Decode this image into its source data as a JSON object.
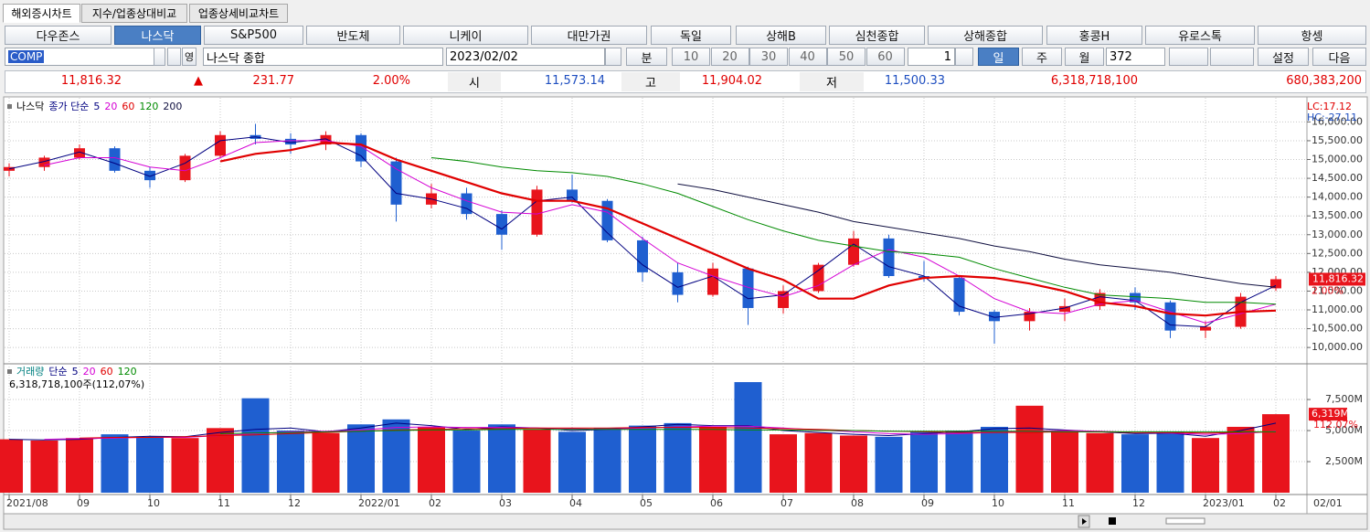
{
  "tabs": [
    "해외증시차트",
    "지수/업종상대비교",
    "업종상세비교차트"
  ],
  "selected_tab": 0,
  "markets": [
    "다우존스",
    "나스닥",
    "S&P500",
    "반도체",
    "니케이",
    "대만가권",
    "독일",
    "상해B",
    "심천종합",
    "상해종합",
    "홍콩H",
    "유로스톡",
    "항셍"
  ],
  "selected_market": 1,
  "toolbar": {
    "symbol": "COMP",
    "lang": "영",
    "name": "나스닥 종합",
    "date": "2023/02/02",
    "unit": "분",
    "minutes": [
      "10",
      "20",
      "30",
      "40",
      "50",
      "60"
    ],
    "interval": "1",
    "periods": [
      "일",
      "주",
      "월"
    ],
    "selected_period": 0,
    "count": "372",
    "settings": "설정",
    "next": "다음"
  },
  "quote": {
    "last": "11,816.32",
    "arrow": "▲",
    "change": "231.77",
    "change_pct": "2.00%",
    "open_label": "시",
    "open": "11,573.14",
    "high_label": "고",
    "high": "11,904.02",
    "low_label": "저",
    "low": "11,500.33",
    "volume": "6,318,718,100",
    "amount": "680,383,200"
  },
  "chart_data": [
    {
      "type": "candlestick",
      "title": "나스닥",
      "legend_title": "종가 단순",
      "up_color": "#e8141c",
      "down_color": "#1f5fd0",
      "open": [
        14700,
        14800,
        15050,
        15300,
        14700,
        14450,
        15100,
        15650,
        15550,
        15400,
        15650,
        14950,
        13800,
        14100,
        13550,
        13000,
        14200,
        13900,
        12850,
        12000,
        11400,
        12100,
        11050,
        11500,
        12200,
        12900,
        11900,
        11850,
        10950,
        10700,
        10950,
        11100,
        11450,
        11200,
        10450,
        10550,
        11573.14
      ],
      "high": [
        14900,
        15100,
        15400,
        15350,
        14800,
        15150,
        15750,
        15950,
        15700,
        15750,
        15700,
        15050,
        14350,
        14250,
        13650,
        14300,
        14600,
        13950,
        12950,
        12250,
        12250,
        12150,
        11650,
        12250,
        13100,
        13000,
        12300,
        11900,
        11000,
        11050,
        11300,
        11550,
        11600,
        11250,
        10700,
        11450,
        11904.02
      ],
      "low": [
        14550,
        14700,
        15000,
        14650,
        14250,
        14400,
        15050,
        15400,
        15150,
        15250,
        14800,
        13350,
        13700,
        13400,
        12600,
        12950,
        13850,
        12800,
        11750,
        11200,
        11350,
        10600,
        10900,
        11450,
        12150,
        11850,
        11750,
        10850,
        10100,
        10450,
        10700,
        11000,
        11000,
        10250,
        10250,
        10500,
        11500.33
      ],
      "close": [
        14800,
        15050,
        15300,
        14700,
        14450,
        15100,
        15650,
        15550,
        15400,
        15650,
        14950,
        13800,
        14100,
        13550,
        13000,
        14200,
        13900,
        12850,
        12000,
        11400,
        12100,
        11050,
        11500,
        12200,
        12900,
        11900,
        11850,
        10950,
        10700,
        10950,
        11100,
        11450,
        11200,
        10450,
        10550,
        11350,
        11816.32
      ],
      "series": [
        {
          "name": "5",
          "color": "#000080",
          "values": [
            14750,
            14950,
            15200,
            14900,
            14550,
            14900,
            15500,
            15600,
            15450,
            15550,
            15100,
            14100,
            13950,
            13700,
            13150,
            13900,
            14000,
            13050,
            12200,
            11600,
            11900,
            11300,
            11400,
            12050,
            12750,
            12150,
            11900,
            11100,
            10800,
            10900,
            11050,
            11350,
            11250,
            10600,
            10550,
            11200,
            11650
          ]
        },
        {
          "name": "20",
          "color": "#d400d4",
          "values": [
            null,
            14850,
            15050,
            15050,
            14800,
            14700,
            15050,
            15450,
            15500,
            15500,
            15350,
            14750,
            14250,
            13900,
            13600,
            13550,
            13800,
            13600,
            12900,
            12250,
            11900,
            11600,
            11350,
            11650,
            12200,
            12600,
            12400,
            11900,
            11300,
            10950,
            10900,
            11150,
            11250,
            10950,
            10650,
            10900,
            11150
          ]
        },
        {
          "name": "60",
          "color": "#e00000",
          "values": [
            null,
            null,
            null,
            null,
            null,
            null,
            14950,
            15150,
            15250,
            15450,
            15400,
            15000,
            14700,
            14400,
            14100,
            13900,
            13900,
            13700,
            13300,
            12900,
            12500,
            12100,
            11800,
            11300,
            11300,
            11650,
            11850,
            11900,
            11850,
            11700,
            11500,
            11200,
            11100,
            10900,
            10850,
            10950,
            10980
          ]
        },
        {
          "name": "120",
          "color": "#008a00",
          "values": [
            null,
            null,
            null,
            null,
            null,
            null,
            null,
            null,
            null,
            null,
            null,
            null,
            15050,
            14950,
            14800,
            14700,
            14650,
            14550,
            14350,
            14100,
            13750,
            13400,
            13100,
            12850,
            12700,
            12550,
            12500,
            12400,
            12100,
            11850,
            11600,
            11400,
            11350,
            11300,
            11200,
            11200,
            11150
          ]
        },
        {
          "name": "200",
          "color": "#101040",
          "values": [
            null,
            null,
            null,
            null,
            null,
            null,
            null,
            null,
            null,
            null,
            null,
            null,
            null,
            null,
            null,
            null,
            null,
            null,
            null,
            14350,
            14200,
            14000,
            13800,
            13600,
            13350,
            13200,
            13050,
            12900,
            12700,
            12550,
            12350,
            12200,
            12100,
            12000,
            11850,
            11700,
            11600
          ]
        }
      ],
      "ylim": [
        9590,
        16520
      ],
      "yticks": [
        {
          "value": 10000,
          "label": "10,000.00"
        },
        {
          "value": 10500,
          "label": "10,500.00"
        },
        {
          "value": 11000,
          "label": "11,000.00"
        },
        {
          "value": 11500,
          "label": "11,500.00"
        },
        {
          "value": 12000,
          "label": "12,000.00"
        },
        {
          "value": 12500,
          "label": "12,500.00"
        },
        {
          "value": 13000,
          "label": "13,000.00"
        },
        {
          "value": 13500,
          "label": "13,500.00"
        },
        {
          "value": 14000,
          "label": "14,000.00"
        },
        {
          "value": 14500,
          "label": "14,500.00"
        },
        {
          "value": 15000,
          "label": "15,000.00"
        },
        {
          "value": 15500,
          "label": "15,500.00"
        },
        {
          "value": 16000,
          "label": "16,000.00"
        }
      ],
      "last_label": "11,816.32",
      "last_change_label": "2.00%",
      "lc": "LC:17.12",
      "hc": "HC:-27.11",
      "grid": true
    },
    {
      "type": "bar",
      "title": "거래량",
      "legend_title": "단순",
      "subtitle": "6,318,718,100주(112,07%)",
      "categories": [
        "2021/08",
        null,
        "09",
        null,
        "10",
        null,
        "11",
        null,
        "12",
        null,
        "2022/01",
        null,
        "02",
        null,
        "03",
        null,
        "04",
        null,
        "05",
        null,
        "06",
        null,
        "07",
        null,
        "08",
        null,
        "09",
        null,
        "10",
        null,
        "11",
        null,
        "12",
        null,
        "2023/01",
        null,
        "02"
      ],
      "axis_end_label": "02/01",
      "values": [
        4300,
        4200,
        4400,
        4700,
        4500,
        4400,
        5200,
        7600,
        5000,
        4800,
        5500,
        5900,
        5300,
        5000,
        5500,
        5100,
        4900,
        5200,
        5400,
        5600,
        5300,
        8900,
        4700,
        4800,
        4600,
        4500,
        4900,
        5000,
        5300,
        7000,
        5000,
        4800,
        4700,
        4900,
        4400,
        5300,
        6318.7181
      ],
      "series": [
        {
          "name": "5",
          "color": "#000080",
          "values": [
            4300,
            4250,
            4300,
            4450,
            4550,
            4500,
            4850,
            5100,
            5200,
            4900,
            5200,
            5600,
            5400,
            5100,
            5300,
            5200,
            5000,
            5100,
            5300,
            5500,
            5400,
            5400,
            5000,
            4850,
            4700,
            4600,
            4750,
            4900,
            5150,
            5200,
            5050,
            4900,
            4750,
            4800,
            4550,
            5000,
            5600
          ]
        },
        {
          "name": "20",
          "color": "#d400d4",
          "values": [
            null,
            4300,
            4350,
            4400,
            4450,
            4450,
            4600,
            4750,
            4900,
            4950,
            5050,
            5250,
            5300,
            5250,
            5250,
            5200,
            5150,
            5100,
            5200,
            5300,
            5350,
            5350,
            5200,
            5050,
            4900,
            4750,
            4700,
            4750,
            4850,
            4950,
            5000,
            4950,
            4850,
            4800,
            4700,
            4750,
            4950
          ]
        },
        {
          "name": "60",
          "color": "#e00000",
          "values": [
            null,
            null,
            4400,
            4450,
            4450,
            4500,
            4600,
            4650,
            4750,
            4850,
            4950,
            5050,
            5100,
            5150,
            5150,
            5200,
            5200,
            5200,
            5250,
            5250,
            5250,
            5200,
            5150,
            5100,
            5000,
            4950,
            4900,
            4850,
            4850,
            4850,
            4900,
            4900,
            4850,
            4850,
            4800,
            4850,
            4900
          ]
        },
        {
          "name": "120",
          "color": "#008a00",
          "values": [
            null,
            null,
            null,
            null,
            null,
            null,
            4750,
            4800,
            4850,
            4900,
            4950,
            5000,
            5050,
            5050,
            5100,
            5100,
            5100,
            5100,
            5100,
            5100,
            5100,
            5050,
            5050,
            5000,
            5000,
            4950,
            4950,
            4950,
            4950,
            4950,
            4900,
            4900,
            4900,
            4900,
            4900,
            4900,
            4900
          ]
        }
      ],
      "ylim": [
        0,
        10300
      ],
      "yticks": [
        {
          "value": 2500,
          "label": "2,500M"
        },
        {
          "value": 5000,
          "label": "5,000M"
        },
        {
          "value": 7500,
          "label": "7,500M"
        }
      ],
      "last_label": "6,319M",
      "last_change_label": "112.07%",
      "grid": true
    }
  ]
}
